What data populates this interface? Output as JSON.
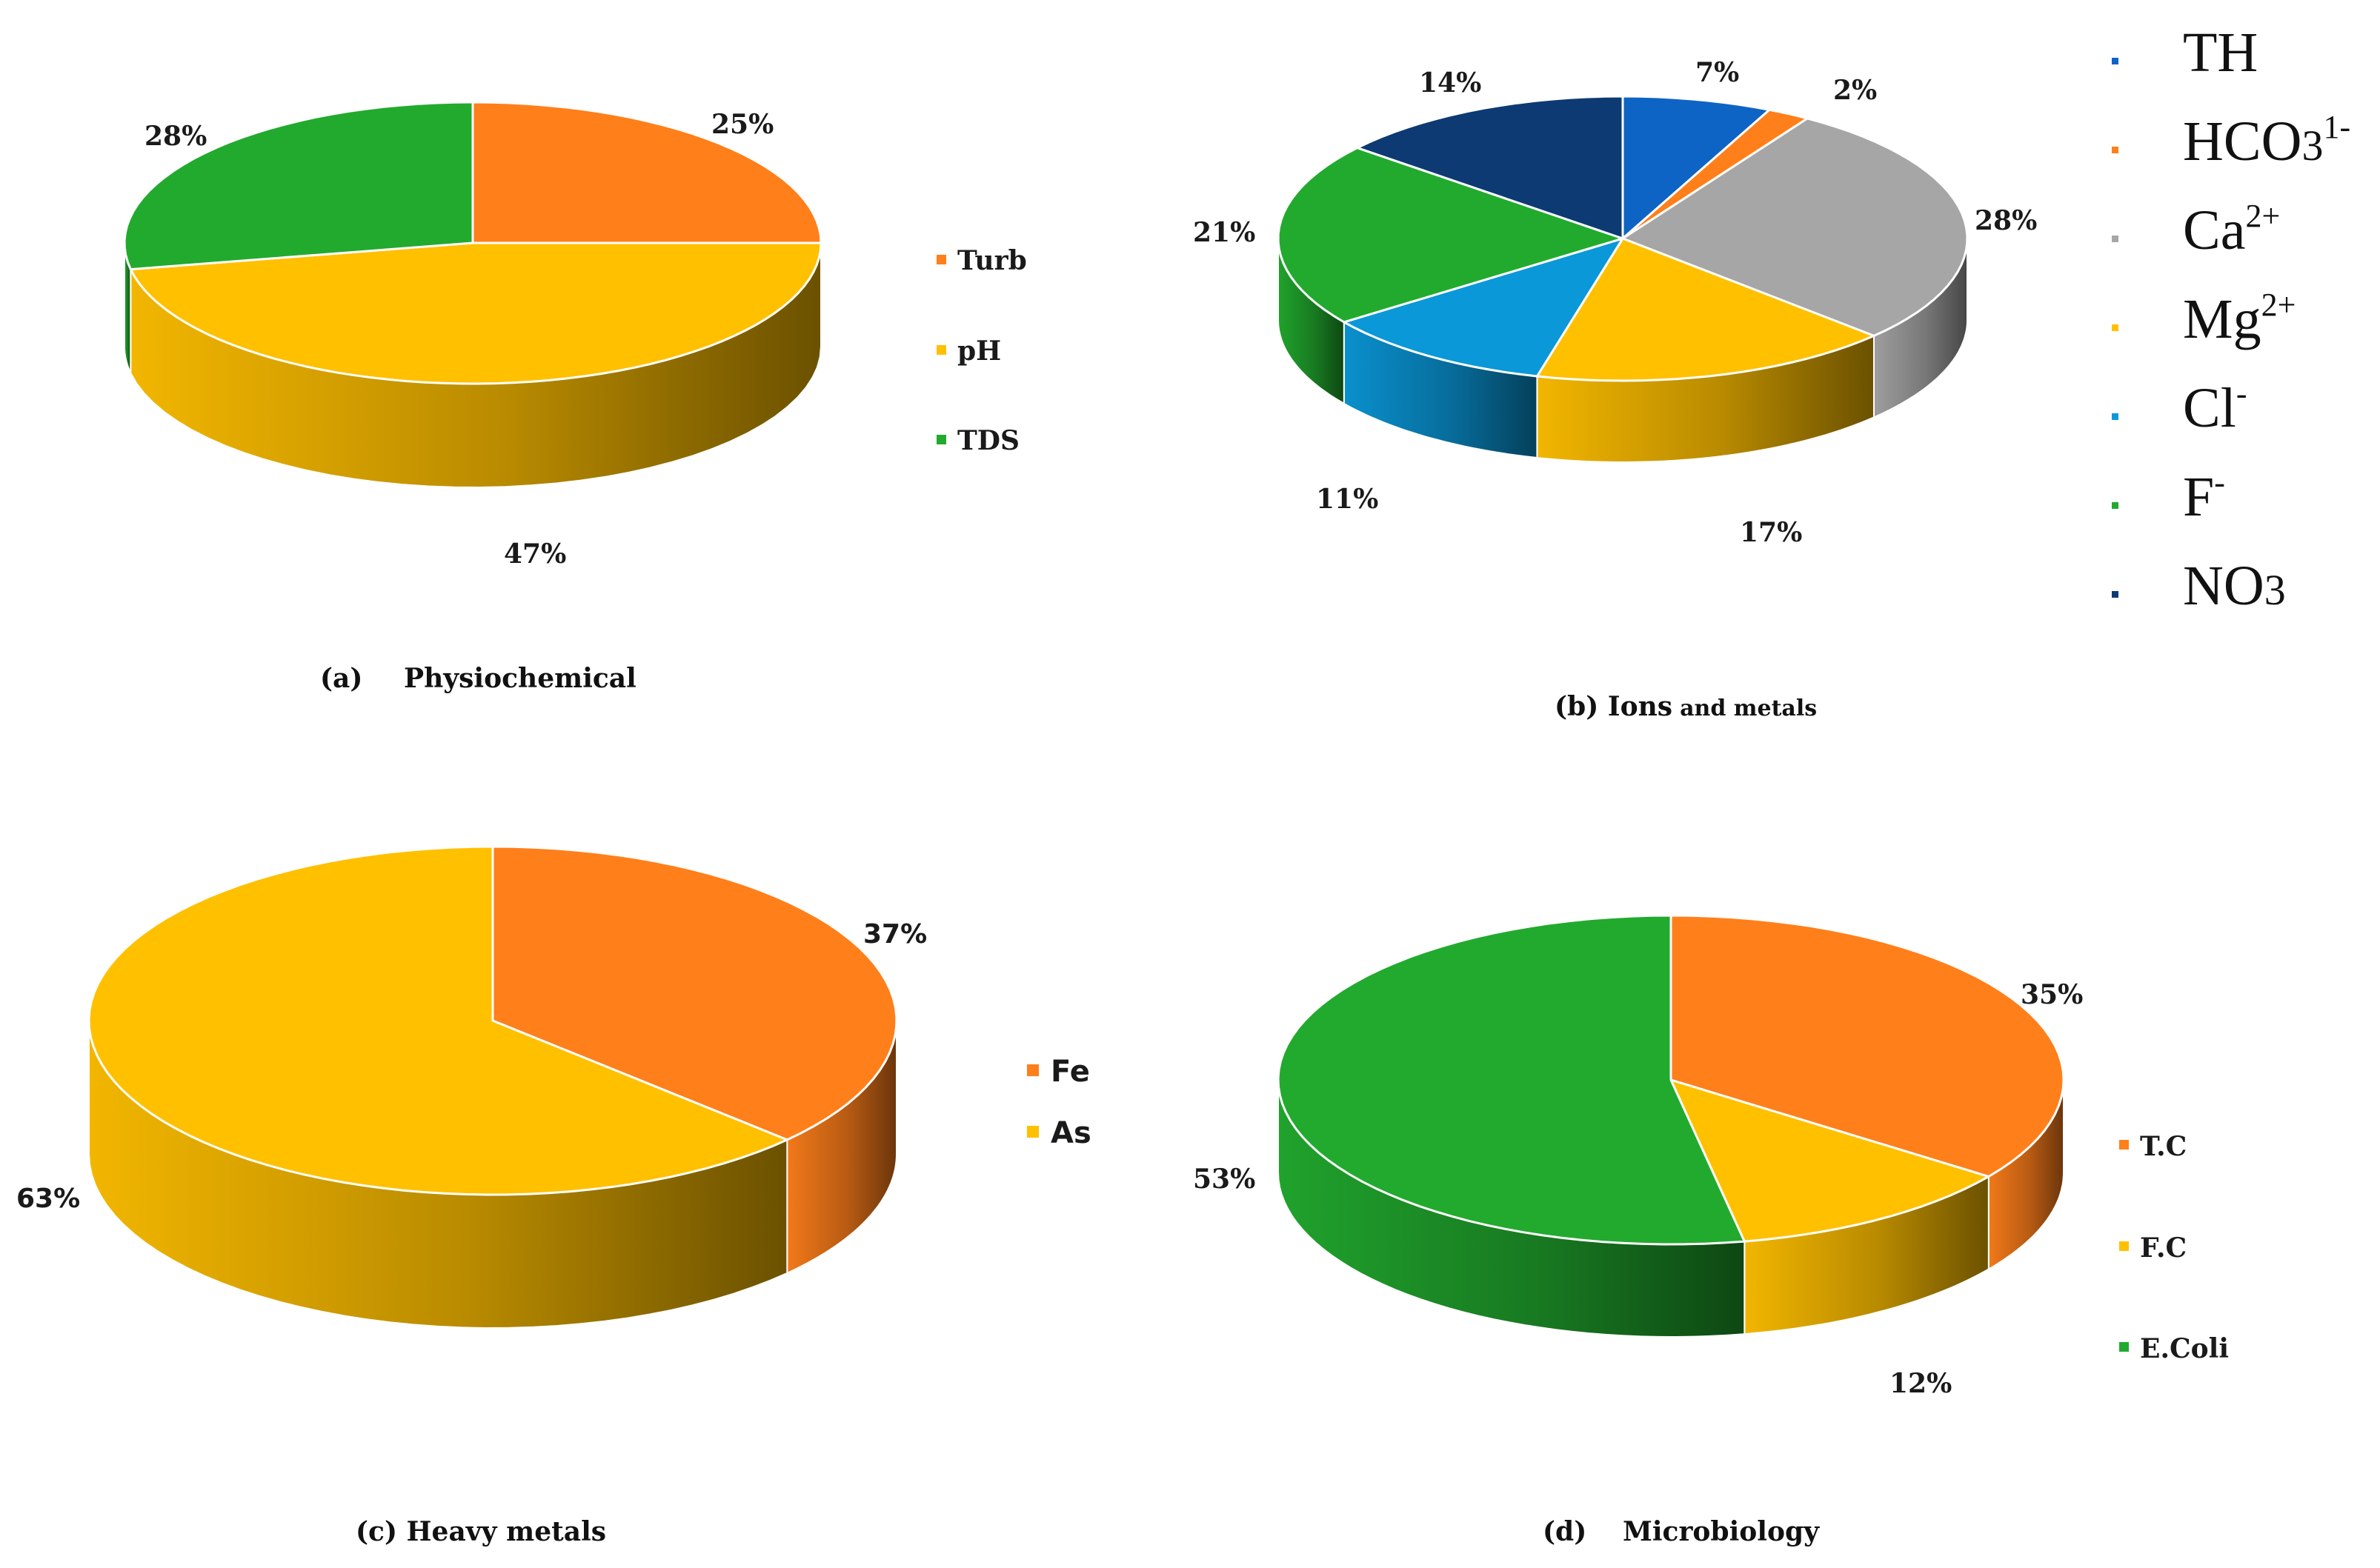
{
  "colors": {
    "orange": "#FF7F1A",
    "yellow": "#FFC000",
    "green": "#22AA2E",
    "gray": "#A6A6A6",
    "blue_dark": "#0E64C4",
    "blue_light": "#0A98D8",
    "navy": "#0D3A73"
  },
  "chart_data": [
    {
      "id": "a",
      "type": "pie",
      "caption_letter": "(a)",
      "caption_text": "Physiochemical",
      "labels": [
        "Turb",
        "pH",
        "TDS"
      ],
      "values": [
        25,
        47,
        28
      ],
      "value_labels": [
        "25%",
        "47%",
        "28%"
      ],
      "colors": [
        "#FF7F1A",
        "#FFC000",
        "#22AA2E"
      ],
      "legend_placement": "right"
    },
    {
      "id": "b",
      "type": "pie",
      "caption_text": "(b) Ions",
      "caption_small": "and metals",
      "legend": [
        {
          "base": "TH",
          "sup": "",
          "sub": ""
        },
        {
          "base": "HCO",
          "sup": "1-",
          "sub": "3"
        },
        {
          "base": "Ca",
          "sup": "2+",
          "sub": ""
        },
        {
          "base": "Mg",
          "sup": "2+",
          "sub": ""
        },
        {
          "base": "Cl",
          "sup": "-",
          "sub": ""
        },
        {
          "base": "F",
          "sup": "-",
          "sub": ""
        },
        {
          "base": "NO",
          "sup": "",
          "sub": "3"
        }
      ],
      "values": [
        7,
        2,
        28,
        17,
        11,
        21,
        14
      ],
      "value_labels": [
        "7%",
        "2%",
        "28%",
        "17%",
        "11%",
        "21%",
        "14%"
      ],
      "colors": [
        "#0E64C4",
        "#FF7F1A",
        "#A6A6A6",
        "#FFC000",
        "#0A98D8",
        "#22AA2E",
        "#0D3A73"
      ],
      "legend_placement": "right"
    },
    {
      "id": "c",
      "type": "pie",
      "caption_text": "(c) Heavy metals",
      "labels": [
        "Fe",
        "As"
      ],
      "values": [
        37,
        63
      ],
      "value_labels": [
        "37%",
        "63%"
      ],
      "colors": [
        "#FF7F1A",
        "#FFC000"
      ],
      "legend_placement": "right"
    },
    {
      "id": "d",
      "type": "pie",
      "caption_letter": "(d)",
      "caption_text": "Microbiology",
      "labels": [
        "T.C",
        "F.C",
        "E.Coli"
      ],
      "values": [
        35,
        12,
        53
      ],
      "value_labels": [
        "35%",
        "12%",
        "53%"
      ],
      "colors": [
        "#FF7F1A",
        "#FFC000",
        "#22AA2E"
      ],
      "legend_placement": "right"
    }
  ]
}
